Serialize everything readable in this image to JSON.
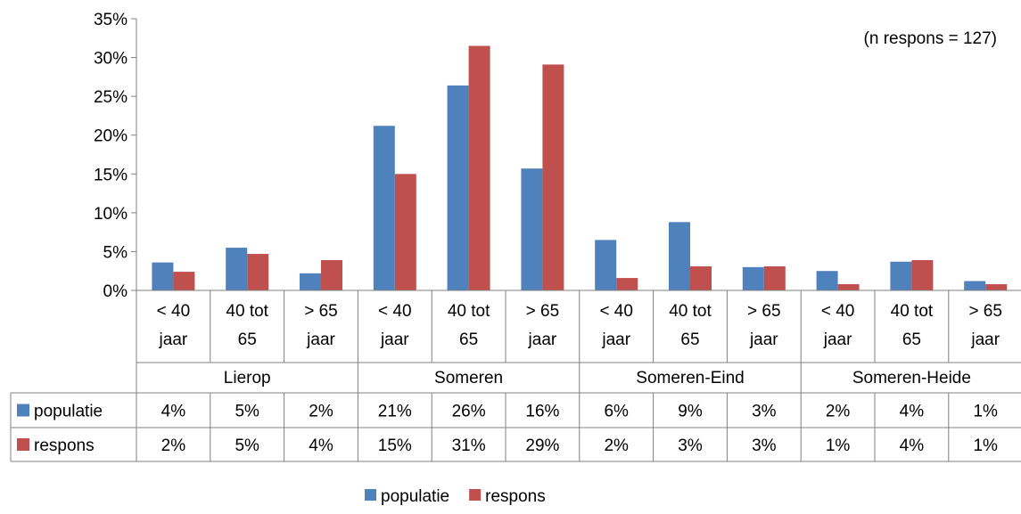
{
  "chart_data": {
    "type": "bar",
    "title": "",
    "annotation": "(n respons = 127)",
    "y_ticks": [
      "0%",
      "5%",
      "10%",
      "15%",
      "20%",
      "25%",
      "30%",
      "35%"
    ],
    "ylim": [
      0,
      35
    ],
    "grid": false,
    "legend_position": "bottom",
    "categories": [
      "< 40 jaar",
      "40 tot 65",
      "> 65 jaar",
      "< 40 jaar",
      "40 tot 65",
      "> 65 jaar",
      "< 40 jaar",
      "40 tot 65",
      "> 65 jaar",
      "< 40 jaar",
      "40 tot 65",
      "> 65 jaar"
    ],
    "category_lines": [
      [
        "< 40",
        "jaar"
      ],
      [
        "40 tot",
        "65"
      ],
      [
        "> 65",
        "jaar"
      ],
      [
        "< 40",
        "jaar"
      ],
      [
        "40 tot",
        "65"
      ],
      [
        "> 65",
        "jaar"
      ],
      [
        "< 40",
        "jaar"
      ],
      [
        "40 tot",
        "65"
      ],
      [
        "> 65",
        "jaar"
      ],
      [
        "< 40",
        "jaar"
      ],
      [
        "40 tot",
        "65"
      ],
      [
        "> 65",
        "jaar"
      ]
    ],
    "groups": [
      "Lierop",
      "Someren",
      "Someren-Eind",
      "Someren-Heide"
    ],
    "series": [
      {
        "name": "populatie",
        "color": "#4f81bd",
        "values": [
          3.6,
          5.5,
          2.2,
          21.2,
          26.4,
          15.7,
          6.5,
          8.8,
          3.0,
          2.5,
          3.7,
          1.2
        ],
        "labels": [
          "4%",
          "5%",
          "2%",
          "21%",
          "26%",
          "16%",
          "6%",
          "9%",
          "3%",
          "2%",
          "4%",
          "1%"
        ]
      },
      {
        "name": "respons",
        "color": "#c0504d",
        "values": [
          2.4,
          4.7,
          3.9,
          15.0,
          31.5,
          29.1,
          1.6,
          3.1,
          3.1,
          0.8,
          3.9,
          0.8
        ],
        "labels": [
          "2%",
          "5%",
          "4%",
          "15%",
          "31%",
          "29%",
          "2%",
          "3%",
          "3%",
          "1%",
          "4%",
          "1%"
        ]
      }
    ]
  }
}
